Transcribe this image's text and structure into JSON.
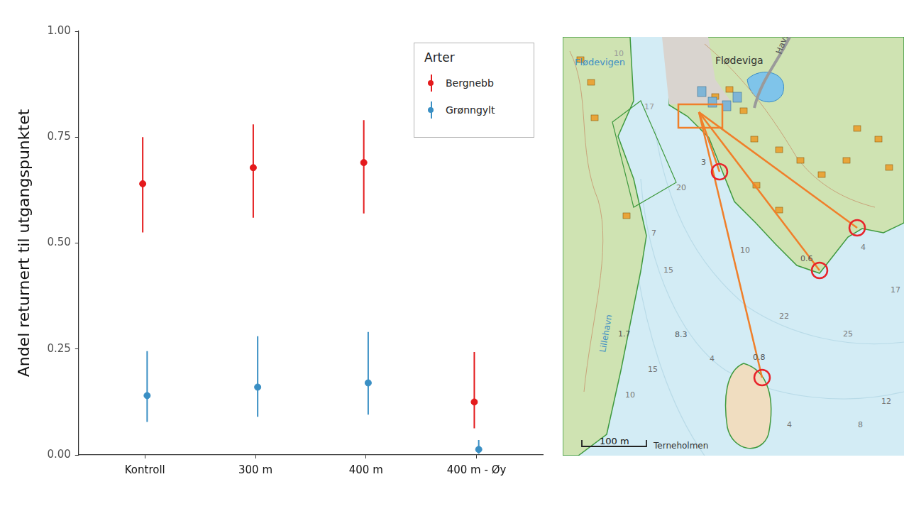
{
  "chart_data": {
    "type": "scatter",
    "y_label": "Andel returnert til utgangspunktet",
    "categories": [
      "Kontroll",
      "300 m",
      "400 m",
      "400 m - Øy"
    ],
    "series": [
      {
        "name": "Bergnebb",
        "color": "#e41a1c",
        "values": [
          0.64,
          0.678,
          0.69,
          0.125
        ],
        "lower": [
          0.525,
          0.56,
          0.57,
          0.063
        ],
        "upper": [
          0.75,
          0.78,
          0.79,
          0.243
        ]
      },
      {
        "name": "Grønngylt",
        "color": "#3a8fc4",
        "values": [
          0.14,
          0.16,
          0.17,
          0.013
        ],
        "lower": [
          0.078,
          0.09,
          0.095,
          0.003
        ],
        "upper": [
          0.245,
          0.28,
          0.29,
          0.035
        ]
      }
    ],
    "legend_title": "Arter",
    "legend": "top-right",
    "ylim": [
      0,
      1
    ],
    "yticks": [
      {
        "value": 0,
        "label": "0.00"
      },
      {
        "value": 0.25,
        "label": "0.25"
      },
      {
        "value": 0.5,
        "label": "0.50"
      },
      {
        "value": 0.75,
        "label": "0.75"
      },
      {
        "value": 1,
        "label": "1.00"
      }
    ],
    "grid": false,
    "marker": "circle"
  },
  "map": {
    "labels": [
      "Flødeviga",
      "Flødevigen",
      "Havsøy",
      "Lillehavn",
      "Terneholmen",
      "100 m",
      "10",
      "17",
      "3",
      "20",
      "7",
      "15",
      "1.7",
      "8.3",
      "10",
      "0.6",
      "22",
      "25",
      "0.8",
      "4",
      "15",
      "10",
      "4",
      "8",
      "12",
      "17",
      "4"
    ]
  }
}
